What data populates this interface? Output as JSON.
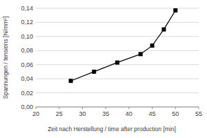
{
  "chart_data": {
    "type": "line",
    "x_label": "Zeit nach Herstellung / time after production [min]",
    "y_label": "Spannungen / tensions [N/mm²]",
    "x": [
      27.5,
      32.5,
      37.5,
      42.5,
      45,
      47.5,
      50
    ],
    "values": [
      0.037,
      0.05,
      0.063,
      0.075,
      0.087,
      0.11,
      0.137
    ],
    "color": "#000000",
    "marker": "square",
    "line_style": "solid",
    "xlim": [
      20,
      55
    ],
    "xticks": [
      20,
      25,
      30,
      35,
      40,
      45,
      50,
      55
    ],
    "ylim": [
      0,
      0.14
    ],
    "yticks": [
      {
        "value": 0,
        "label": "0,00"
      },
      {
        "value": 0.02,
        "label": "0,02"
      },
      {
        "value": 0.04,
        "label": "0,04"
      },
      {
        "value": 0.06,
        "label": "0,06"
      },
      {
        "value": 0.08,
        "label": "0,08"
      },
      {
        "value": 0.1,
        "label": "0,10"
      },
      {
        "value": 0.12,
        "label": "0,12"
      },
      {
        "value": 0.14,
        "label": "0,14"
      }
    ],
    "grid": true
  }
}
